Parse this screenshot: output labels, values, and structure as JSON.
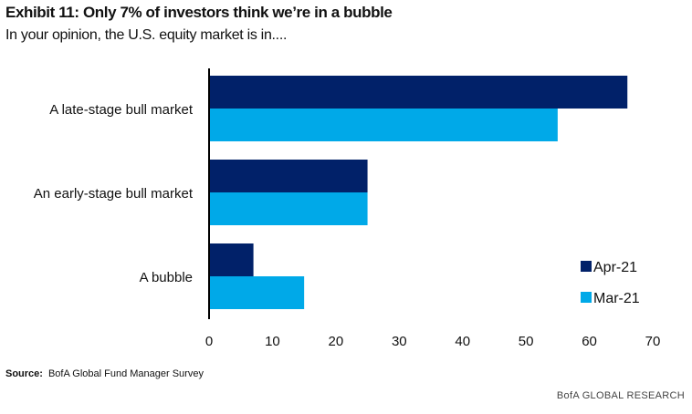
{
  "title": "Exhibit 11: Only 7% of investors think we’re in a bubble",
  "subtitle": "In your opinion, the U.S. equity market is in....",
  "source_label": "Source:",
  "source_text": "BofA Global Fund Manager Survey",
  "footer": "BofA GLOBAL RESEARCH",
  "chart_data": {
    "type": "bar",
    "orientation": "horizontal",
    "categories": [
      "A late-stage bull market",
      "An early-stage bull market",
      "A bubble"
    ],
    "series": [
      {
        "name": "Apr-21",
        "color": "#012169",
        "values": [
          66,
          25,
          7
        ]
      },
      {
        "name": "Mar-21",
        "color": "#00a9e8",
        "values": [
          55,
          25,
          15
        ]
      }
    ],
    "xlim": [
      0,
      70
    ],
    "xticks": [
      0,
      10,
      20,
      30,
      40,
      50,
      60,
      70
    ],
    "grid": false,
    "legend": "bottom-right"
  }
}
